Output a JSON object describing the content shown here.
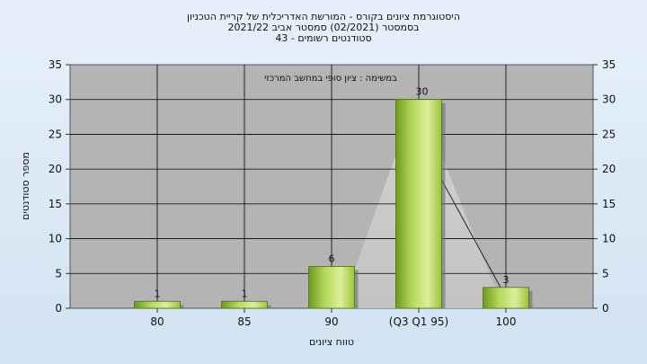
{
  "chart_data": {
    "type": "bar",
    "title_lines": [
      "היסטוגרמת ציונים בקורס - המורשת האדריכלית של קריית הטכניון",
      "בסמסטר   (02/2021)   סמסטר אביב 2021/22",
      "סטודנטים רשומים - 43"
    ],
    "subtitle": "במשימה : ציון סופי במחשב המרכזי",
    "xlabel": "טווח ציונים",
    "ylabel": "מספר סטודנטים",
    "categories": [
      "80",
      "85",
      "90",
      "(Q3 Q1 95)",
      "100"
    ],
    "values": [
      1,
      1,
      6,
      30,
      3
    ],
    "ylim": [
      0,
      35
    ],
    "yticks": [
      0,
      5,
      10,
      15,
      20,
      25,
      30,
      35
    ],
    "grid": true,
    "legend": "none",
    "colors": {
      "plot_bg": "#b4b4b4",
      "bar_light": "#dff0a8",
      "bar_mid": "#9cc43a",
      "bar_dark": "#5f8a1a",
      "shape_fill": "#cfcfcf"
    }
  }
}
